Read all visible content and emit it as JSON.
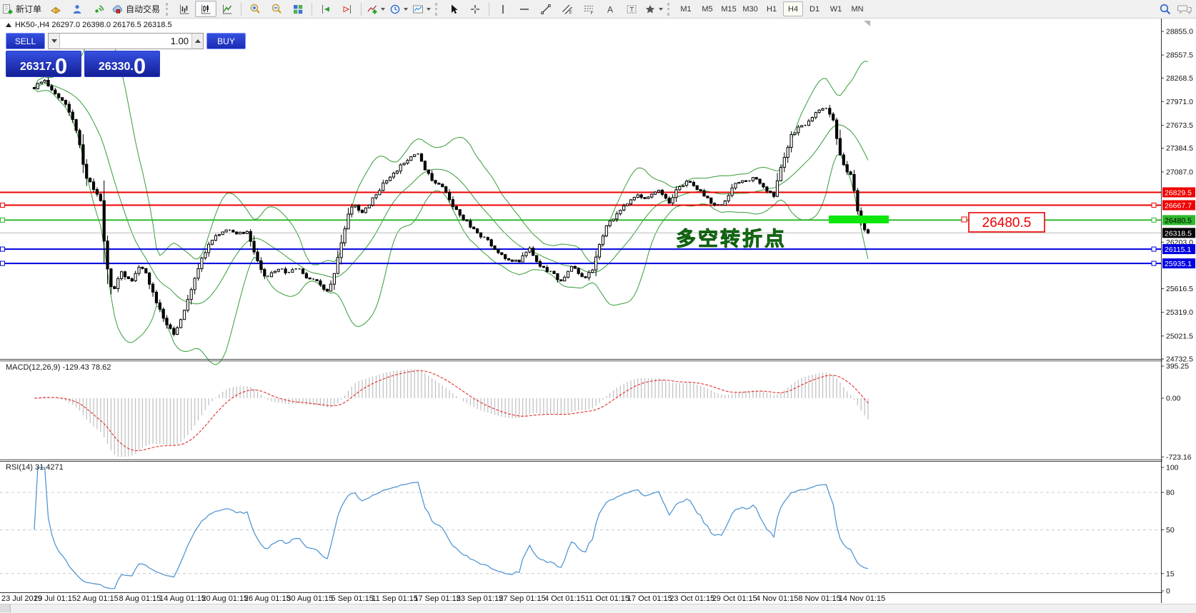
{
  "toolbar": {
    "new_order_label": "新订单",
    "autotrade_label": "自动交易",
    "timeframes": [
      "M1",
      "M5",
      "M15",
      "M30",
      "H1",
      "H4",
      "D1",
      "W1",
      "MN"
    ],
    "active_timeframe": "H4",
    "icon_glyphs": {
      "text_icon": "A",
      "label_icon": "T",
      "channel_e": "E",
      "fibo_f": "F"
    }
  },
  "panel": {
    "collapse_glyph": "",
    "title": "HK50-,H4  26297.0 26398.0 26176.5 26318.5",
    "sell_label": "SELL",
    "buy_label": "BUY",
    "volume": "1.00",
    "sell_price_main": "26317",
    "sell_price_dot": ".",
    "sell_price_big": "0",
    "buy_price_main": "26330",
    "buy_price_dot": ".",
    "buy_price_big": "0"
  },
  "chart": {
    "macd_label": "MACD(12,26,9) -129.43 78.62",
    "rsi_label": "RSI(14) 31.4271",
    "annotation": "多空转折点",
    "red_callout": "26480.5",
    "price_ticks": [
      "28855.0",
      "28557.5",
      "28268.5",
      "27971.0",
      "27673.5",
      "27384.5",
      "27087.0",
      "26203.0",
      "25616.5",
      "25319.0",
      "25021.5",
      "24732.5"
    ],
    "macd_ticks": [
      "395.25",
      "0.00",
      "-723.16"
    ],
    "rsi_ticks": [
      "100",
      "80",
      "50",
      "15",
      "0"
    ],
    "rsi_levels": [
      80,
      50,
      15
    ],
    "hlines": [
      {
        "price": 26829.5,
        "label": "26829.5",
        "color": "#ee0000",
        "text": "#ffffff",
        "marker": false
      },
      {
        "price": 26667.7,
        "label": "26667.7",
        "color": "#ee0000",
        "text": "#ffffff",
        "marker": true
      },
      {
        "price": 26480.5,
        "label": "26480.5",
        "color": "#2eb82e",
        "text": "#000000",
        "marker": true
      },
      {
        "price": 26115.1,
        "label": "26115.1",
        "color": "#0000e0",
        "text": "#ffffff",
        "marker": true
      },
      {
        "price": 25935.1,
        "label": "25935.1",
        "color": "#0000e0",
        "text": "#ffffff",
        "marker": true
      }
    ],
    "bid": {
      "price": 26318.5,
      "label": "26318.5",
      "color": "#000000",
      "text": "#ffffff"
    },
    "dates": [
      "23 Jul 2019",
      "29 Jul 01:15",
      "2 Aug 01:15",
      "8 Aug 01:15",
      "14 Aug 01:15",
      "20 Aug 01:15",
      "26 Aug 01:15",
      "30 Aug 01:15",
      "5 Sep 01:15",
      "11 Sep 01:15",
      "17 Sep 01:15",
      "23 Sep 01:15",
      "27 Sep 01:15",
      "4 Oct 01:15",
      "11 Oct 01:15",
      "17 Oct 01:15",
      "23 Oct 01:15",
      "29 Oct 01:15",
      "4 Nov 01:15",
      "8 Nov 01:15",
      "14 Nov 01:15"
    ],
    "chart_data": {
      "type": "candlestick",
      "symbol": "HK50-",
      "timeframe": "H4",
      "ohlc": {
        "open": 26297.0,
        "high": 26398.0,
        "low": 26176.5,
        "close": 26318.5
      },
      "last_close": 26318.5,
      "y_range": [
        24732.5,
        28855.0
      ],
      "bands_color": "#379c37",
      "macd_range": [
        -723.16,
        395.25
      ],
      "rsi_last": 31.4271,
      "price_path": [
        [
          0,
          28150
        ],
        [
          0.012,
          28240
        ],
        [
          0.025,
          28090
        ],
        [
          0.04,
          27890
        ],
        [
          0.052,
          27560
        ],
        [
          0.06,
          27080
        ],
        [
          0.07,
          26890
        ],
        [
          0.079,
          26760
        ],
        [
          0.086,
          25980
        ],
        [
          0.094,
          25560
        ],
        [
          0.105,
          25840
        ],
        [
          0.115,
          25690
        ],
        [
          0.127,
          25920
        ],
        [
          0.136,
          25760
        ],
        [
          0.146,
          25430
        ],
        [
          0.156,
          25230
        ],
        [
          0.168,
          25010
        ],
        [
          0.18,
          25340
        ],
        [
          0.196,
          25870
        ],
        [
          0.208,
          26150
        ],
        [
          0.22,
          26300
        ],
        [
          0.232,
          26370
        ],
        [
          0.245,
          26310
        ],
        [
          0.256,
          26350
        ],
        [
          0.266,
          26010
        ],
        [
          0.278,
          25730
        ],
        [
          0.291,
          25880
        ],
        [
          0.303,
          25810
        ],
        [
          0.315,
          25880
        ],
        [
          0.328,
          25750
        ],
        [
          0.341,
          25690
        ],
        [
          0.35,
          25550
        ],
        [
          0.359,
          25780
        ],
        [
          0.368,
          26180
        ],
        [
          0.376,
          26560
        ],
        [
          0.384,
          26670
        ],
        [
          0.393,
          26560
        ],
        [
          0.405,
          26730
        ],
        [
          0.418,
          26930
        ],
        [
          0.43,
          27070
        ],
        [
          0.441,
          27170
        ],
        [
          0.452,
          27270
        ],
        [
          0.459,
          27360
        ],
        [
          0.469,
          27110
        ],
        [
          0.48,
          26940
        ],
        [
          0.491,
          26890
        ],
        [
          0.504,
          26630
        ],
        [
          0.517,
          26470
        ],
        [
          0.53,
          26330
        ],
        [
          0.543,
          26230
        ],
        [
          0.556,
          26080
        ],
        [
          0.568,
          25980
        ],
        [
          0.581,
          25950
        ],
        [
          0.594,
          26120
        ],
        [
          0.607,
          25880
        ],
        [
          0.62,
          25830
        ],
        [
          0.633,
          25680
        ],
        [
          0.645,
          25920
        ],
        [
          0.658,
          25730
        ],
        [
          0.669,
          25850
        ],
        [
          0.676,
          26090
        ],
        [
          0.684,
          26370
        ],
        [
          0.697,
          26530
        ],
        [
          0.71,
          26670
        ],
        [
          0.723,
          26820
        ],
        [
          0.735,
          26740
        ],
        [
          0.748,
          26870
        ],
        [
          0.761,
          26690
        ],
        [
          0.774,
          26920
        ],
        [
          0.787,
          26970
        ],
        [
          0.8,
          26830
        ],
        [
          0.812,
          26690
        ],
        [
          0.825,
          26650
        ],
        [
          0.838,
          26920
        ],
        [
          0.851,
          26970
        ],
        [
          0.864,
          27020
        ],
        [
          0.877,
          26880
        ],
        [
          0.887,
          26790
        ],
        [
          0.898,
          27240
        ],
        [
          0.909,
          27570
        ],
        [
          0.92,
          27670
        ],
        [
          0.93,
          27720
        ],
        [
          0.941,
          27870
        ],
        [
          0.95,
          27910
        ],
        [
          0.958,
          27730
        ],
        [
          0.965,
          27400
        ],
        [
          0.969,
          27180
        ],
        [
          0.98,
          27030
        ],
        [
          0.988,
          26550
        ],
        [
          0.997,
          26330
        ],
        [
          1,
          26318.5
        ]
      ]
    }
  }
}
